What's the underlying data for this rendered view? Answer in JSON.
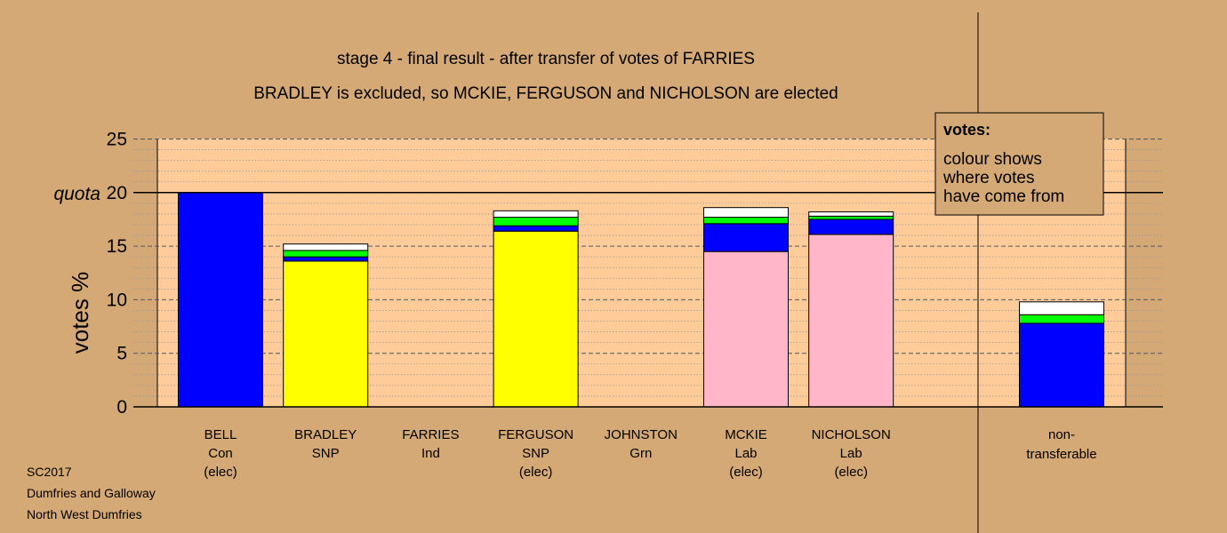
{
  "chart_data": {
    "type": "bar",
    "stacked": true,
    "title": "stage 4 - final result - after transfer of votes of FARRIES",
    "subtitle": "BRADLEY is excluded, so MCKIE, FERGUSON and NICHOLSON are elected",
    "ylabel": "votes %",
    "ylim": [
      0,
      25
    ],
    "yticks": [
      0,
      5,
      10,
      15,
      20,
      25
    ],
    "quota": {
      "label": "quota",
      "value": 20
    },
    "categories": [
      {
        "name": "BELL",
        "party": "Con",
        "status": "(elec)"
      },
      {
        "name": "BRADLEY",
        "party": "SNP",
        "status": ""
      },
      {
        "name": "FARRIES",
        "party": "Ind",
        "status": ""
      },
      {
        "name": "FERGUSON",
        "party": "SNP",
        "status": "(elec)"
      },
      {
        "name": "JOHNSTON",
        "party": "Grn",
        "status": ""
      },
      {
        "name": "MCKIE",
        "party": "Lab",
        "status": "(elec)"
      },
      {
        "name": "NICHOLSON",
        "party": "Lab",
        "status": "(elec)"
      }
    ],
    "nontransferable": {
      "line1": "non-",
      "line2": "transferable",
      "segments": [
        {
          "color": "#0000ff",
          "value": 7.8
        },
        {
          "color": "#00ff00",
          "value": 0.8
        },
        {
          "color": "#ffffff",
          "value": 1.2
        }
      ]
    },
    "bars": [
      [
        {
          "color": "#0000ff",
          "value": 20.0
        }
      ],
      [
        {
          "color": "#ffff00",
          "value": 13.6
        },
        {
          "color": "#0000ff",
          "value": 0.4
        },
        {
          "color": "#00ff00",
          "value": 0.6
        },
        {
          "color": "#ffffff",
          "value": 0.6
        }
      ],
      [],
      [
        {
          "color": "#ffff00",
          "value": 16.4
        },
        {
          "color": "#0000ff",
          "value": 0.5
        },
        {
          "color": "#00ff00",
          "value": 0.8
        },
        {
          "color": "#ffffff",
          "value": 0.6
        }
      ],
      [],
      [
        {
          "color": "#ffb6c8",
          "value": 14.5
        },
        {
          "color": "#0000ff",
          "value": 2.6
        },
        {
          "color": "#00ff00",
          "value": 0.6
        },
        {
          "color": "#ffffff",
          "value": 0.9
        }
      ],
      [
        {
          "color": "#ffb6c8",
          "value": 16.1
        },
        {
          "color": "#0000ff",
          "value": 1.4
        },
        {
          "color": "#00ff00",
          "value": 0.3
        },
        {
          "color": "#ffffff",
          "value": 0.4
        }
      ]
    ],
    "legend": {
      "placement": "top-right",
      "heading": "votes:",
      "lines": [
        "colour shows",
        "where votes",
        "have come from"
      ]
    },
    "colors": {
      "background": "#d4a976",
      "plot_area": "#ffcc99",
      "blue": "#0000ff",
      "yellow": "#ffff00",
      "pink": "#ffb6c8",
      "green": "#00ff00",
      "white": "#ffffff"
    }
  },
  "footer": {
    "line1": "SC2017",
    "line2": "Dumfries and Galloway",
    "line3": "North West Dumfries"
  }
}
